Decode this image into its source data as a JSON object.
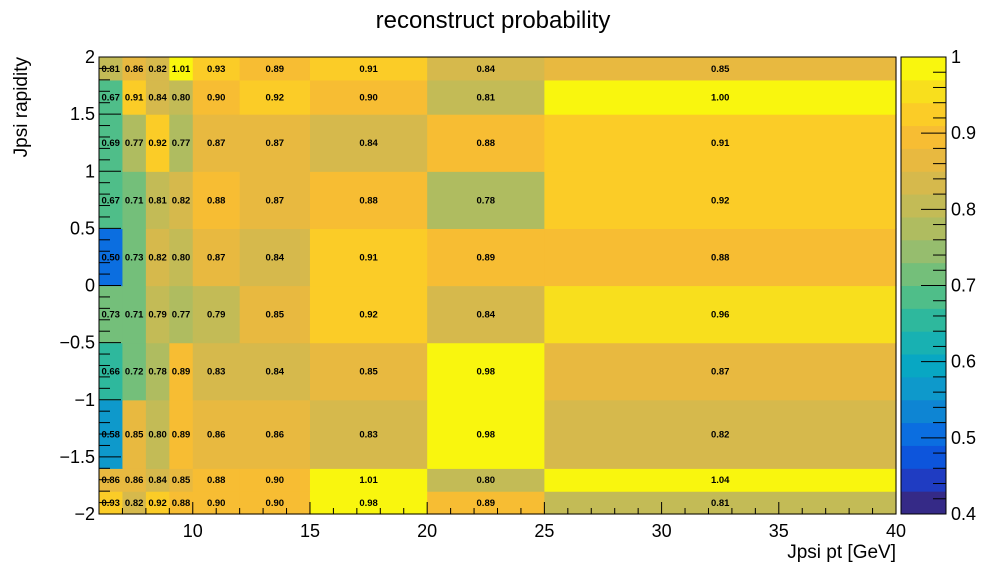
{
  "chart_data": {
    "type": "heatmap",
    "title": "reconstruct probability",
    "xlabel": "Jpsi pt [GeV]",
    "ylabel": "Jpsi rapidity",
    "x_edges": [
      6,
      7,
      8,
      9,
      10,
      12,
      15,
      20,
      25,
      40
    ],
    "y_edges": [
      -2,
      -1.8,
      -1.6,
      -1,
      -0.5,
      0,
      0.5,
      1,
      1.5,
      1.8,
      2
    ],
    "xlim": [
      6,
      40
    ],
    "ylim": [
      -2,
      2
    ],
    "zlim": [
      0.4,
      1.0
    ],
    "x_ticks": [
      10,
      15,
      20,
      25,
      30,
      35,
      40
    ],
    "y_ticks": [
      -2,
      -1.5,
      -1,
      -0.5,
      0,
      0.5,
      1,
      1.5,
      2
    ],
    "z_ticks": [
      0.4,
      0.5,
      0.6,
      0.7,
      0.8,
      0.9,
      1
    ],
    "x_tick_labels": [
      "10",
      "15",
      "20",
      "25",
      "30",
      "35",
      "40"
    ],
    "y_tick_labels": [
      "−2",
      "−1.5",
      "−1",
      "−0.5",
      "0",
      "0.5",
      "1",
      "1.5",
      "2"
    ],
    "z_tick_labels": [
      "0.4",
      "0.5",
      "0.6",
      "0.7",
      "0.8",
      "0.9",
      "1"
    ],
    "value_labels_shown": true,
    "colormap": "ROOT kBird, 20 contours",
    "palette": [
      "#352a87",
      "#1f3cc2",
      "#0d55dc",
      "#0b6ee0",
      "#0e85d3",
      "#0e99cb",
      "#08a7c3",
      "#18b1b2",
      "#2eb89d",
      "#4fbe89",
      "#74bf7a",
      "#96bd6e",
      "#afbc60",
      "#c3bb56",
      "#d6b94c",
      "#e8b940",
      "#f7bd33",
      "#fbcc27",
      "#f8df1d",
      "#f9f60e"
    ],
    "values": [
      [
        0.93,
        0.82,
        0.92,
        0.88,
        0.9,
        0.9,
        0.98,
        0.89,
        0.81
      ],
      [
        0.86,
        0.86,
        0.84,
        0.85,
        0.88,
        0.9,
        1.01,
        0.8,
        1.04
      ],
      [
        0.58,
        0.85,
        0.8,
        0.89,
        0.86,
        0.86,
        0.83,
        0.98,
        0.82
      ],
      [
        0.66,
        0.72,
        0.78,
        0.89,
        0.83,
        0.84,
        0.85,
        0.98,
        0.87
      ],
      [
        0.73,
        0.71,
        0.79,
        0.77,
        0.79,
        0.85,
        0.92,
        0.84,
        0.96
      ],
      [
        0.5,
        0.73,
        0.82,
        0.8,
        0.87,
        0.84,
        0.91,
        0.89,
        0.88
      ],
      [
        0.67,
        0.71,
        0.81,
        0.82,
        0.88,
        0.87,
        0.88,
        0.78,
        0.92
      ],
      [
        0.69,
        0.77,
        0.92,
        0.77,
        0.87,
        0.87,
        0.84,
        0.88,
        0.91
      ],
      [
        0.67,
        0.91,
        0.84,
        0.8,
        0.9,
        0.92,
        0.9,
        0.81,
        1.0
      ],
      [
        0.81,
        0.86,
        0.82,
        1.01,
        0.93,
        0.89,
        0.91,
        0.84,
        0.85
      ]
    ],
    "legend": "color scale bar on right"
  }
}
